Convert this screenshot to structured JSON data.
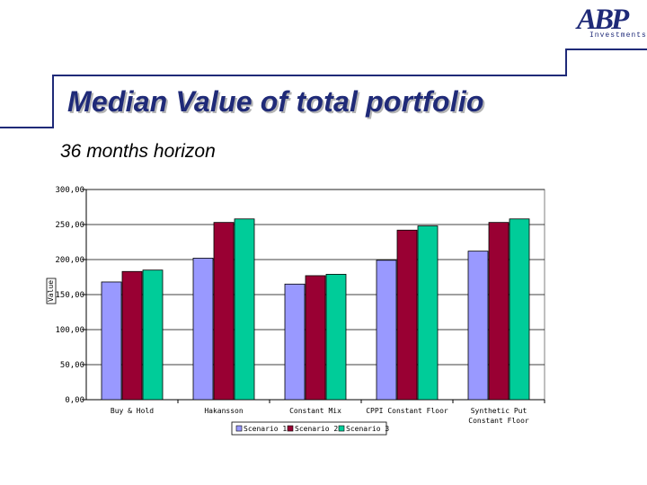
{
  "logo": {
    "mark": "ABP",
    "sub": "Investments"
  },
  "slide": {
    "title": "Median Value of total portfolio",
    "subtitle": "36 months horizon"
  },
  "colors": {
    "brand": "#1f2a78",
    "scenario1": "#9999ff",
    "scenario2": "#990033",
    "scenario3": "#00cc99",
    "plot_bg": "#ffffff"
  },
  "chart_data": {
    "type": "bar",
    "title": "",
    "xlabel": "",
    "ylabel": "Value",
    "ylim": [
      0,
      300
    ],
    "yticks": [
      0,
      50,
      100,
      150,
      200,
      250,
      300
    ],
    "ytick_labels": [
      "0,00",
      "50,00",
      "100,00",
      "150,00",
      "200,00",
      "250,00",
      "300,00"
    ],
    "grid": true,
    "legend_position": "bottom",
    "categories": [
      "Buy & Hold",
      "Hakansson",
      "Constant Mix",
      "CPPI Constant Floor",
      "Synthetic Put Constant Floor"
    ],
    "series": [
      {
        "name": "Scenario 1",
        "values": [
          168,
          202,
          165,
          199,
          212
        ]
      },
      {
        "name": "Scenario 2",
        "values": [
          183,
          253,
          177,
          242,
          253
        ]
      },
      {
        "name": "Scenario 3",
        "values": [
          185,
          258,
          179,
          248,
          258
        ]
      }
    ]
  }
}
